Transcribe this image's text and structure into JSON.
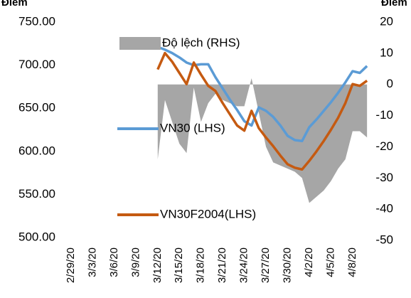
{
  "chart_data": {
    "type": "line",
    "y_label": "Điểm",
    "y2_label": "Điểm",
    "categories": [
      "2/29/20",
      null,
      null,
      "3/3/20",
      null,
      null,
      "3/6/20",
      null,
      null,
      "3/9/20",
      null,
      null,
      "3/12/20",
      null,
      null,
      "3/15/20",
      null,
      null,
      "3/18/20",
      null,
      null,
      "3/21/20",
      null,
      null,
      "3/24/20",
      null,
      null,
      "3/27/20",
      null,
      null,
      "3/30/20",
      null,
      null,
      "4/2/20",
      null,
      null,
      "4/5/20",
      null,
      null,
      "4/8/20",
      null,
      null
    ],
    "series": [
      {
        "name": "Độ lệch (RHS)",
        "kind": "area",
        "axis": "y2",
        "color": "#a6a6a6",
        "values": [
          null,
          null,
          null,
          null,
          null,
          null,
          null,
          null,
          null,
          null,
          null,
          null,
          -24,
          -5,
          -12,
          -19,
          -22,
          -1,
          -12,
          -6,
          -3,
          -5,
          -6,
          -7,
          -7,
          2,
          -9,
          -20,
          -25,
          -26,
          -27,
          -28,
          -30,
          -38,
          -36,
          -34,
          -31,
          -27,
          -24,
          -15,
          -15,
          -17
        ]
      },
      {
        "name": "VN30 (LHS)",
        "kind": "line",
        "color": "#5b9bd5",
        "values": [
          null,
          null,
          null,
          null,
          null,
          null,
          null,
          null,
          null,
          null,
          null,
          null,
          721,
          718,
          714,
          709,
          703,
          700,
          701,
          701,
          686,
          673,
          660,
          648,
          635,
          630,
          651,
          647,
          640,
          630,
          618,
          613,
          612,
          628,
          637,
          647,
          657,
          668,
          680,
          693,
          691,
          699
        ]
      },
      {
        "name": "VN30F2004(LHS)",
        "kind": "line",
        "color": "#c55a11",
        "values": [
          null,
          null,
          null,
          null,
          null,
          null,
          null,
          null,
          null,
          null,
          null,
          null,
          695,
          714,
          704,
          691,
          678,
          703,
          689,
          676,
          670,
          656,
          643,
          630,
          624,
          647,
          627,
          616,
          606,
          595,
          585,
          581,
          579,
          589,
          600,
          612,
          625,
          639,
          656,
          678,
          676,
          682
        ]
      }
    ],
    "ylim": [
      500,
      750
    ],
    "yticks": [
      {
        "value": 500,
        "label": "500.00"
      },
      {
        "value": 550,
        "label": "550.00"
      },
      {
        "value": 600,
        "label": "600.00"
      },
      {
        "value": 650,
        "label": "650.00"
      },
      {
        "value": 700,
        "label": "700.00"
      },
      {
        "value": 750,
        "label": "750.00"
      }
    ],
    "y2lim": [
      -50,
      20
    ],
    "y2ticks": [
      -50,
      -40,
      -30,
      -20,
      -10,
      0,
      10,
      20
    ],
    "grid": false
  }
}
